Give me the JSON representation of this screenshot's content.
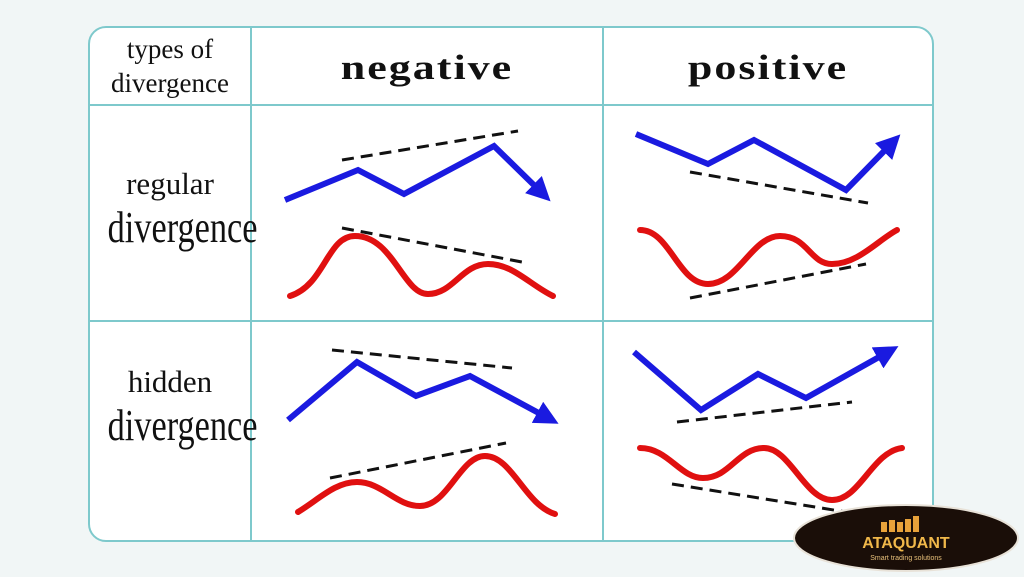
{
  "table": {
    "corner_label_line1": "types of",
    "corner_label_line2": "divergence",
    "columns": [
      "negative",
      "positive"
    ],
    "rows": [
      {
        "line1": "regular",
        "line2": "divergence"
      },
      {
        "line1": "hidden",
        "line2": "divergence"
      }
    ]
  },
  "colors": {
    "price": "#1a1ae0",
    "oscillator": "#e01010",
    "trendline": "#111111",
    "border": "#7ec9cc"
  },
  "logo": {
    "name": "ATAQUANT",
    "tagline": "Smart trading solutions"
  }
}
